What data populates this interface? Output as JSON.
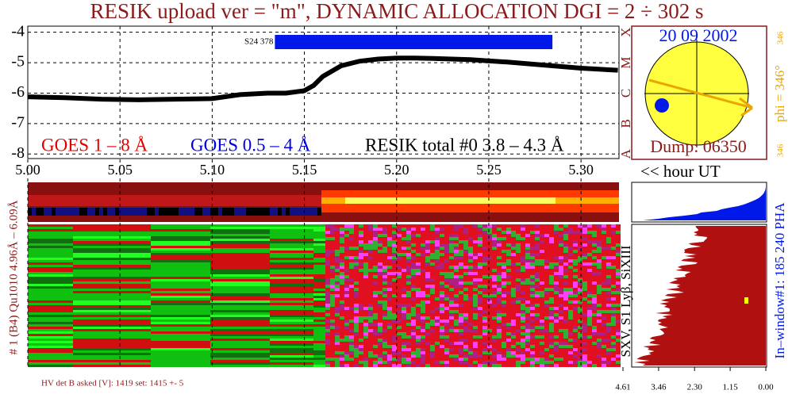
{
  "title": "RESIK upload ver = \"m\", DYNAMIC ALLOCATION  DGI =   2 ÷ 302 s",
  "chart_data": {
    "type": "line",
    "x": [
      5.0,
      5.02,
      5.04,
      5.06,
      5.08,
      5.1,
      5.115,
      5.13,
      5.14,
      5.15,
      5.155,
      5.16,
      5.17,
      5.18,
      5.19,
      5.2,
      5.21,
      5.22,
      5.24,
      5.26,
      5.28,
      5.3,
      5.32
    ],
    "values": [
      -6.12,
      -6.15,
      -6.2,
      -6.22,
      -6.2,
      -6.18,
      -6.05,
      -6.0,
      -6.0,
      -5.92,
      -5.75,
      -5.45,
      -5.1,
      -4.95,
      -4.88,
      -4.85,
      -4.85,
      -4.86,
      -4.9,
      -4.98,
      -5.08,
      -5.18,
      -5.25
    ],
    "color": "#000000",
    "xlim": [
      5.0,
      5.3206
    ],
    "ylim": [
      -8.15,
      -3.8
    ],
    "xticks": [
      {
        "value": 5.0,
        "label": "5.00"
      },
      5.05,
      {
        "value": 5.1,
        "label": "5.10"
      },
      5.15,
      {
        "value": 5.2,
        "label": "5.20"
      },
      5.25,
      {
        "value": 5.3,
        "label": "5.30"
      }
    ],
    "yticks": [
      -4,
      -5,
      -6,
      -7,
      -8
    ],
    "class_labels": [
      {
        "value": -4,
        "label": "X"
      },
      {
        "value": -5,
        "label": "M"
      },
      {
        "value": -6,
        "label": "C"
      },
      {
        "value": -7,
        "label": "B"
      },
      {
        "value": -8,
        "label": "A"
      }
    ],
    "legend": [
      {
        "label": "GOES 1 – 8 Å",
        "color": "#e00000"
      },
      {
        "label": "GOES 0.5 – 4 Å",
        "color": "#0000e0"
      },
      {
        "label": "RESIK total #0  3.8 – 4.3 Å",
        "color": "#000000"
      }
    ],
    "interval": {
      "label": "S24 378",
      "start": 5.134,
      "end": 5.2845,
      "color": "#0018e8"
    }
  },
  "sun": {
    "date": "20 09 2002",
    "dump": "Dump: 06350",
    "phi": "phi = 346°",
    "phi_top": "346",
    "phi_bottom": "346"
  },
  "hour_label": "<< hour UT",
  "spectrogram": {
    "left_label": "# 1 (B4) Qu1010 4.96Å – 6.09Å",
    "hv_label": "HV det B asked [V]:  1419 set:  1415 +-    5",
    "line_label": "SXV, S1 Lyβ, SiXIII",
    "right_label": "In–window#1:  185 240 PHA",
    "counts_xlim": [
      4.61,
      0
    ],
    "counts_ticks": [
      4.61,
      3.46,
      {
        "value": 2.3,
        "label": "2.30"
      },
      1.15,
      {
        "value": 0,
        "label": "0.00"
      }
    ]
  }
}
